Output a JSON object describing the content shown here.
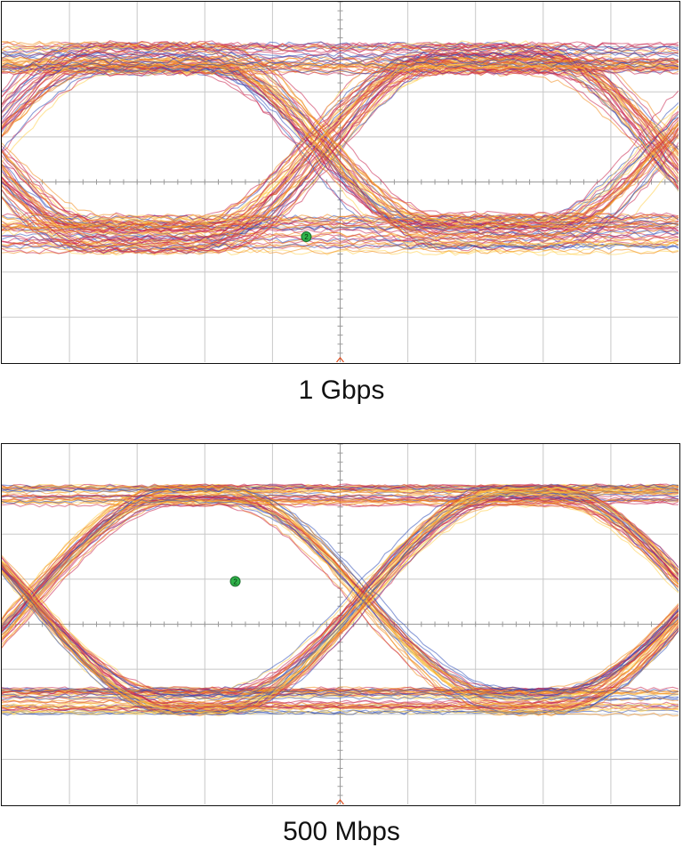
{
  "colors": {
    "grid": "#c8c8c8",
    "center_axis": "#9a9a9a",
    "trace_cold": "#2f4fb8",
    "trace_mid": "#c8244e",
    "trace_warm": "#f08a1a",
    "trace_hot": "#ffd04a",
    "marker": "#2fb34a",
    "trigger": "#e05020"
  },
  "chart_data": [
    {
      "type": "eye-diagram",
      "caption": "1 Gbps",
      "grid": {
        "divisions_x": 10,
        "divisions_y": 8,
        "visible": true
      },
      "levels": {
        "high": 0.72,
        "low": -0.3
      },
      "crossings_unit_interval": [
        0.22,
        0.72
      ],
      "eye_opening": 0.55,
      "noise": 0.09,
      "marker_label": "2",
      "marker_position": {
        "t": 0.45,
        "v": -0.32
      }
    },
    {
      "type": "eye-diagram",
      "caption": "500 Mbps",
      "grid": {
        "divisions_x": 10,
        "divisions_y": 8,
        "visible": true
      },
      "levels": {
        "high": 0.75,
        "low": -0.45
      },
      "crossings_unit_interval": [
        0.29,
        0.78
      ],
      "eye_opening": 0.85,
      "noise": 0.06,
      "marker_label": "2",
      "marker_position": {
        "t": 0.345,
        "v": 0.25
      }
    }
  ]
}
